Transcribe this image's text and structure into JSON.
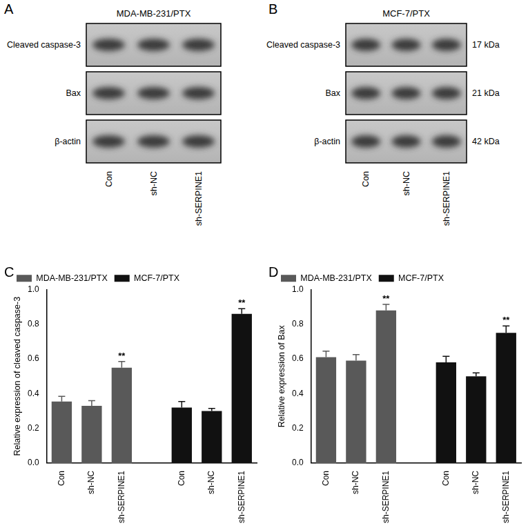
{
  "blots": [
    {
      "panel": "A",
      "title": "MDA-MB-231/PTX",
      "rows": [
        "Cleaved caspase-3",
        "Bax",
        "β-actin"
      ],
      "lanes": [
        "Con",
        "sh-NC",
        "sh-SERPINE1"
      ]
    },
    {
      "panel": "B",
      "title": "MCF-7/PTX",
      "rows": [
        "Cleaved caspase-3",
        "Bax",
        "β-actin"
      ],
      "lanes": [
        "Con",
        "sh-NC",
        "sh-SERPINE1"
      ],
      "sizes": [
        "17 kDa",
        "21 kDa",
        "42 kDa"
      ]
    }
  ],
  "chart_data": [
    {
      "panel": "C",
      "type": "bar",
      "y_label": "Relative expression of cleaved caspase-3",
      "categories": [
        "Con",
        "sh-NC",
        "sh-SERPINE1",
        null,
        "Con",
        "sh-NC",
        "sh-SERPINE1"
      ],
      "series": [
        {
          "name": "MDA-MB-231/PTX",
          "color": "#595959",
          "values": [
            0.355,
            0.33,
            0.55,
            null,
            null,
            null,
            null
          ],
          "error": [
            0.03,
            0.03,
            0.035,
            null,
            null,
            null,
            null
          ],
          "annotations": [
            null,
            null,
            "**",
            null,
            null,
            null,
            null
          ]
        },
        {
          "name": "MCF-7/PTX",
          "color": "#111111",
          "values": [
            null,
            null,
            null,
            null,
            0.32,
            0.3,
            0.86
          ],
          "error": [
            null,
            null,
            null,
            null,
            0.035,
            0.015,
            0.03
          ],
          "annotations": [
            null,
            null,
            null,
            null,
            null,
            null,
            "**"
          ]
        }
      ],
      "ylim": [
        0,
        1.0
      ],
      "yticks": [
        {
          "value": 0,
          "label": "0.0"
        },
        0.2,
        0.4,
        0.6,
        0.8,
        {
          "value": 1.0,
          "label": "1.0"
        }
      ],
      "legend": "top-left",
      "grid": false
    },
    {
      "panel": "D",
      "type": "bar",
      "y_label": "Relative expression of Bax",
      "categories": [
        "Con",
        "sh-NC",
        "sh-SERPINE1",
        null,
        "Con",
        "sh-NC",
        "sh-SERPINE1"
      ],
      "series": [
        {
          "name": "MDA-MB-231/PTX",
          "color": "#595959",
          "values": [
            0.61,
            0.59,
            0.88,
            null,
            null,
            null,
            null
          ],
          "error": [
            0.035,
            0.035,
            0.035,
            null,
            null,
            null,
            null
          ],
          "annotations": [
            null,
            null,
            "**",
            null,
            null,
            null,
            null
          ]
        },
        {
          "name": "MCF-7/PTX",
          "color": "#111111",
          "values": [
            null,
            null,
            null,
            null,
            0.58,
            0.5,
            0.75
          ],
          "error": [
            null,
            null,
            null,
            null,
            0.035,
            0.02,
            0.04
          ],
          "annotations": [
            null,
            null,
            null,
            null,
            null,
            null,
            "**"
          ]
        }
      ],
      "ylim": [
        0,
        1.0
      ],
      "yticks": [
        {
          "value": 0,
          "label": "0.0"
        },
        0.2,
        0.4,
        0.6,
        0.8,
        {
          "value": 1.0,
          "label": "1.0"
        }
      ],
      "legend": "top-left",
      "grid": false
    }
  ]
}
